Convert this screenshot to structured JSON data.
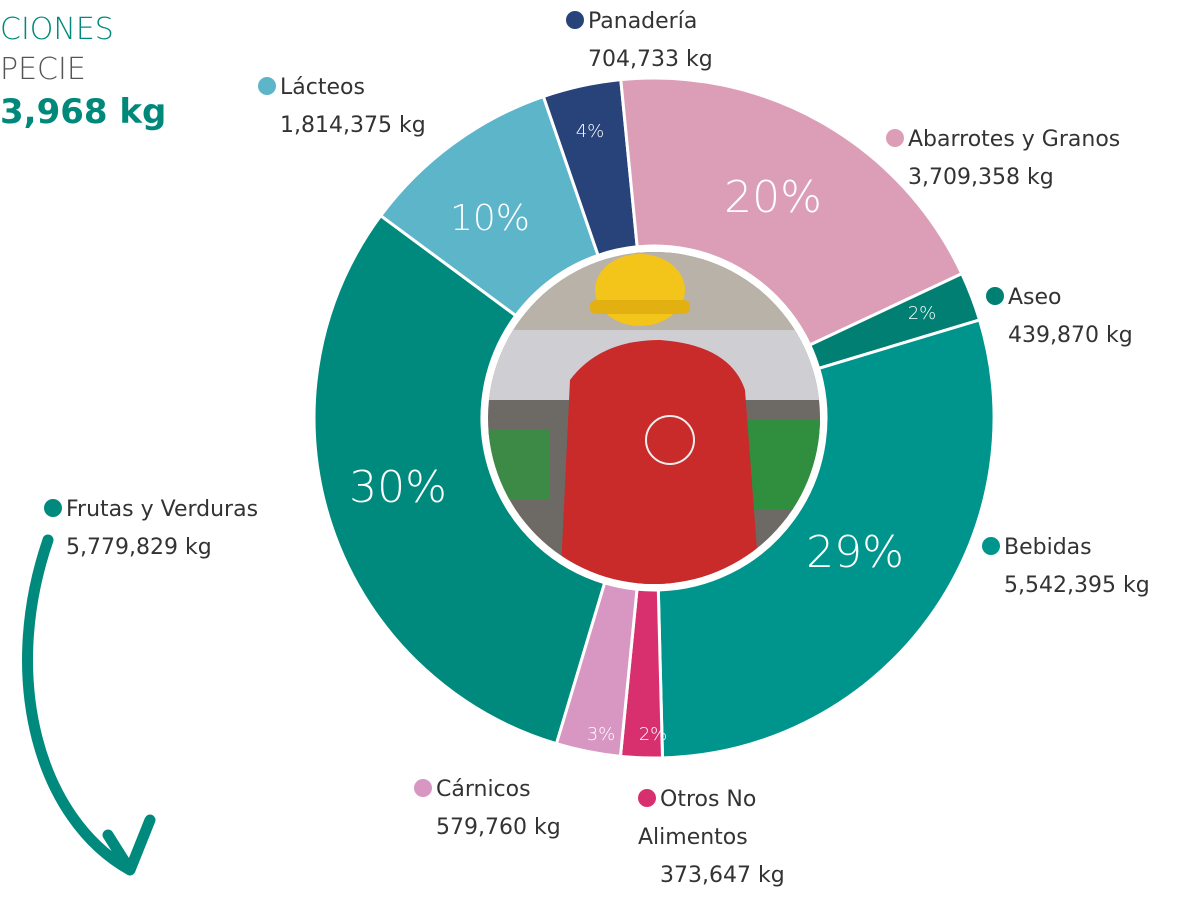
{
  "chart_data": {
    "type": "donut",
    "title_lines": [
      "CIONES",
      "PECIE"
    ],
    "total": "3,968 kg",
    "categories": [
      "Panadería",
      "Abarrotes y Granos",
      "Aseo",
      "Bebidas",
      "Otros No Alimentos",
      "Cárnicos",
      "Frutas y Verduras",
      "Lácteos"
    ],
    "values": [
      704733,
      3709358,
      439870,
      5542395,
      373647,
      579760,
      5779829,
      1814375
    ],
    "value_labels": [
      "704,733 kg",
      "3,709,358 kg",
      "439,870 kg",
      "5,542,395 kg",
      "373,647 kg",
      "579,760 kg",
      "5,779,829 kg",
      "1,814,375 kg"
    ],
    "percent_labels": [
      "4%",
      "20%",
      "2%",
      "29%",
      "2%",
      "3%",
      "30%",
      "10%"
    ],
    "colors": [
      "#27437a",
      "#dc9eb7",
      "#007f72",
      "#00958c",
      "#d8306f",
      "#d896c2",
      "#008a7e",
      "#5db5ca"
    ]
  }
}
